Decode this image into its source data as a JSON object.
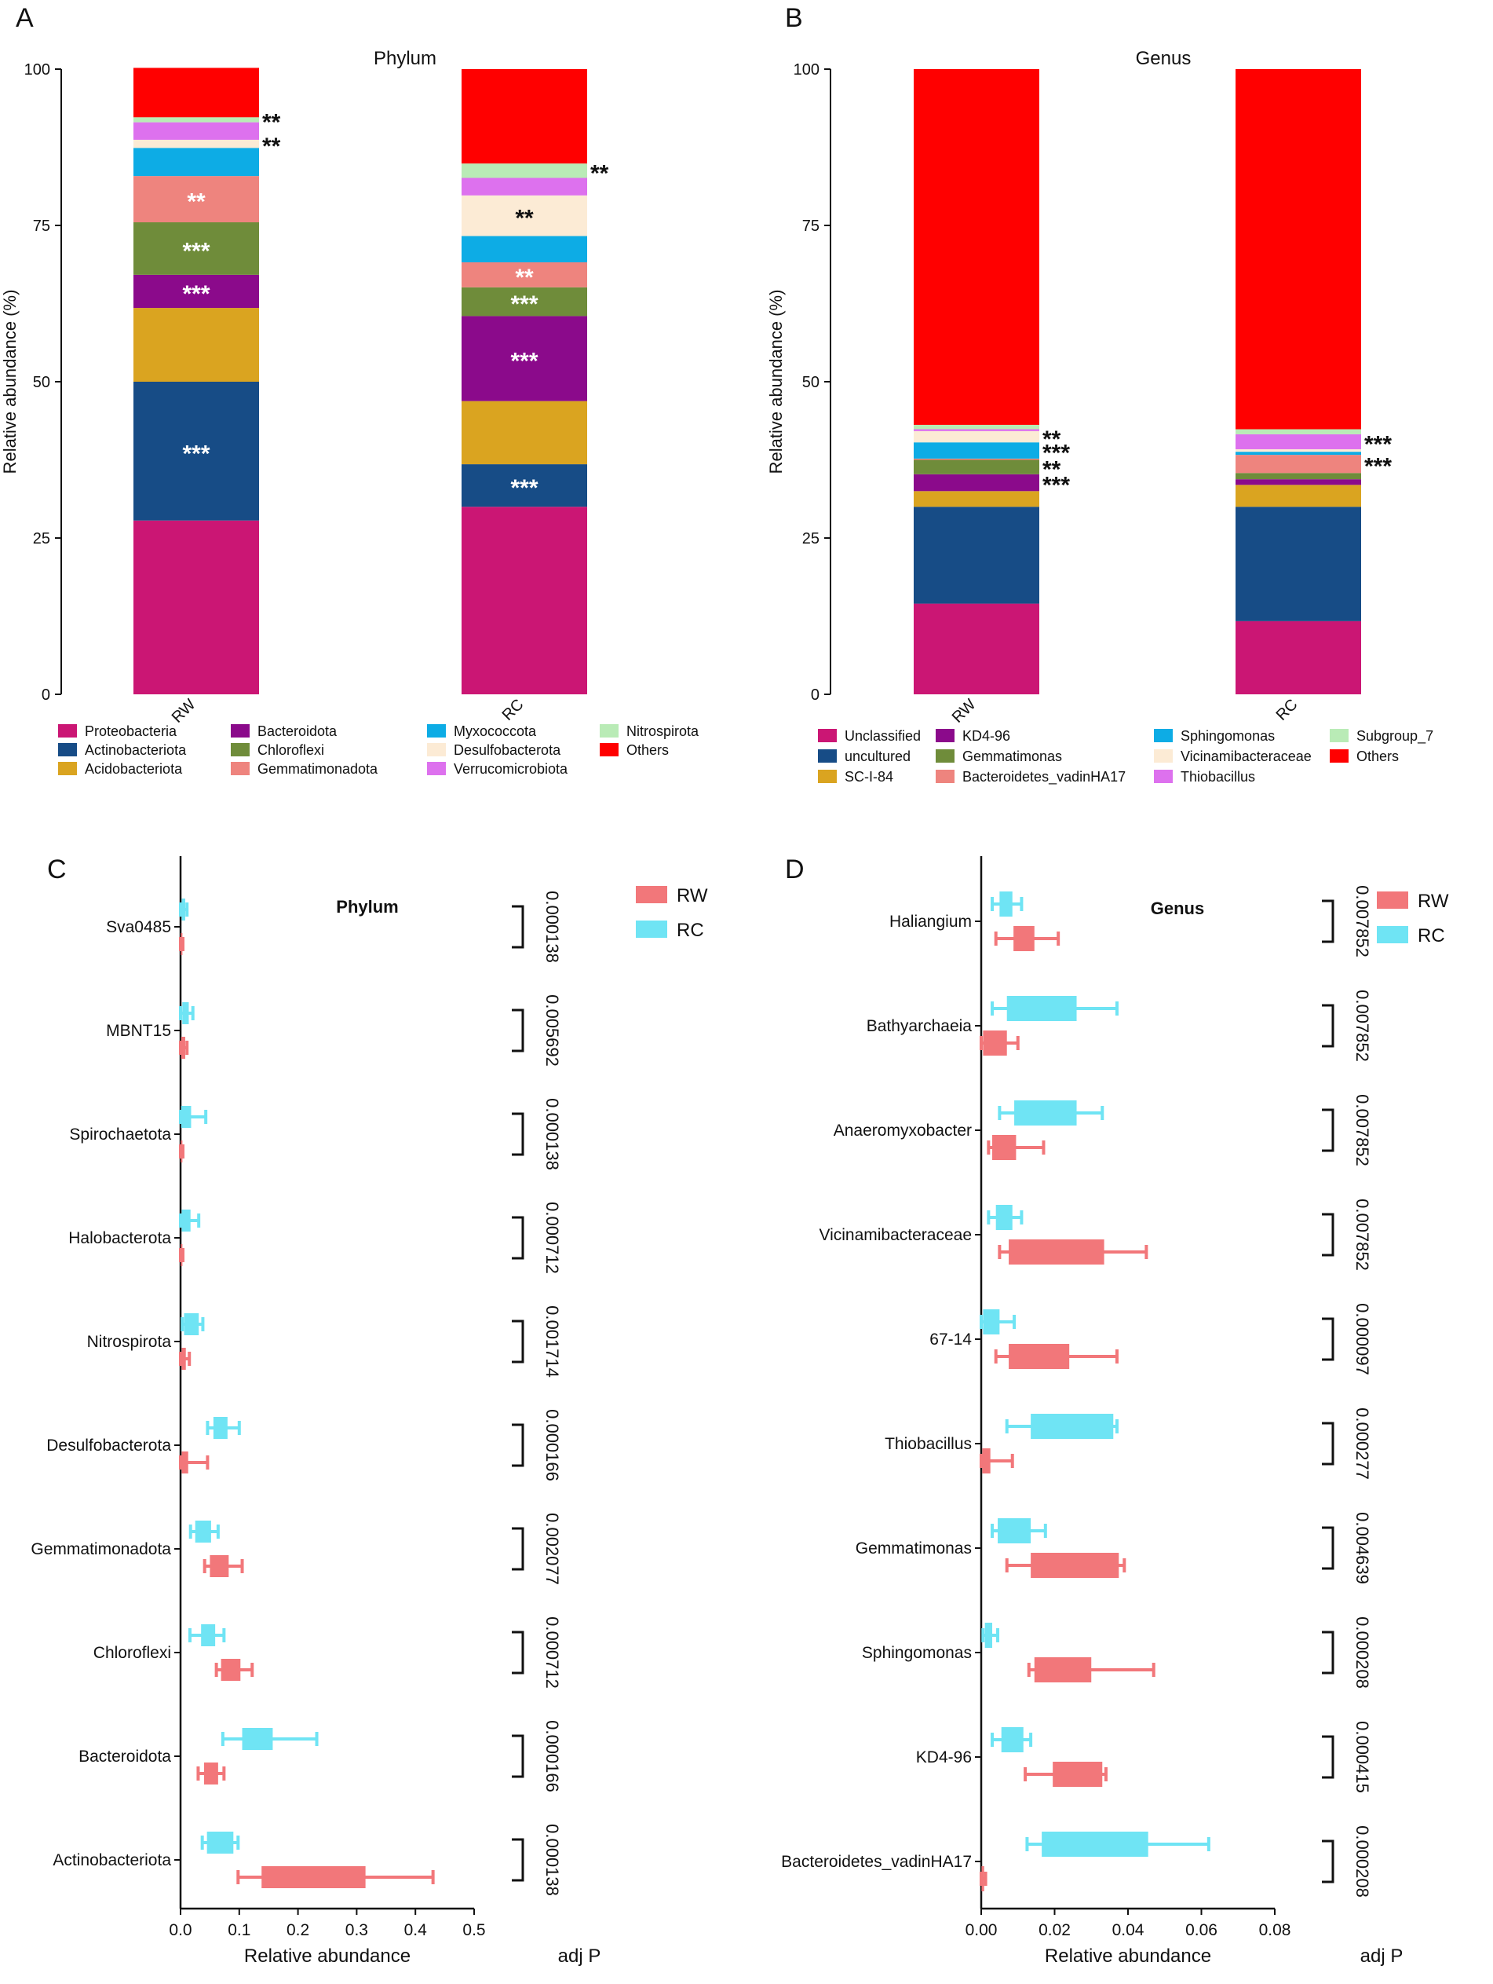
{
  "chart_data": [
    {
      "panel": "A",
      "type": "stacked-bar",
      "title": "Phylum",
      "ylabel": "Relative abundance (%)",
      "xlabel": "",
      "ylim": [
        0,
        100
      ],
      "yticks": [
        0,
        25,
        50,
        75,
        100
      ],
      "categories": [
        "RW",
        "RC"
      ],
      "series": [
        {
          "name": "Proteobacteria",
          "color": "#CB1674",
          "values": [
            27.8,
            30.0
          ],
          "sig": [
            "",
            ""
          ],
          "sig_color": [
            "#ffffff",
            "#ffffff"
          ]
        },
        {
          "name": "Actinobacteriota",
          "color": "#174C86",
          "values": [
            22.2,
            6.8
          ],
          "sig": [
            "***",
            "***"
          ],
          "sig_color": [
            "#ffffff",
            "#ffffff"
          ]
        },
        {
          "name": "Acidobacteriota",
          "color": "#DAA420",
          "values": [
            11.8,
            10.1
          ],
          "sig": [
            "",
            ""
          ],
          "sig_color": [
            "#ffffff",
            "#ffffff"
          ]
        },
        {
          "name": "Bacteroidota",
          "color": "#8B0A8B",
          "values": [
            5.3,
            13.6
          ],
          "sig": [
            "***",
            "***"
          ],
          "sig_color": [
            "#ffffff",
            "#ffffff"
          ]
        },
        {
          "name": "Chloroflexi",
          "color": "#6F8C3A",
          "values": [
            8.4,
            4.6
          ],
          "sig": [
            "***",
            "***"
          ],
          "sig_color": [
            "#ffffff",
            "#ffffff"
          ]
        },
        {
          "name": "Gemmatimonadota",
          "color": "#EE847E",
          "values": [
            7.4,
            4.0
          ],
          "sig": [
            "**",
            "**"
          ],
          "sig_color": [
            "#ffffff",
            "#ffffff"
          ]
        },
        {
          "name": "Myxococcota",
          "color": "#0DACE5",
          "values": [
            4.5,
            4.2
          ],
          "sig": [
            "",
            ""
          ],
          "sig_color": [
            "#ffffff",
            "#ffffff"
          ]
        },
        {
          "name": "Desulfobacterota",
          "color": "#FCEBD5",
          "values": [
            1.3,
            6.5
          ],
          "sig": [
            "**",
            "**"
          ],
          "sig_color": [
            "#111111",
            "#111111"
          ]
        },
        {
          "name": "Verrucomicrobiota",
          "color": "#DD71EE",
          "values": [
            2.8,
            2.8
          ],
          "sig": [
            "",
            ""
          ],
          "sig_color": [
            "#111111",
            "#111111"
          ]
        },
        {
          "name": "Nitrospirota",
          "color": "#B9EBB6",
          "values": [
            0.8,
            2.3
          ],
          "sig": [
            "**",
            "**"
          ],
          "sig_color": [
            "#111111",
            "#111111"
          ]
        },
        {
          "name": "Others",
          "color": "#FF0000",
          "values": [
            7.9,
            15.1
          ],
          "sig": [
            "",
            ""
          ],
          "sig_color": [
            "#111111",
            "#111111"
          ]
        }
      ]
    },
    {
      "panel": "B",
      "type": "stacked-bar",
      "title": "Genus",
      "ylabel": "Relative abundance (%)",
      "xlabel": "",
      "ylim": [
        0,
        100
      ],
      "yticks": [
        0,
        25,
        50,
        75,
        100
      ],
      "categories": [
        "RW",
        "RC"
      ],
      "series": [
        {
          "name": "Unclassified",
          "color": "#CB1674",
          "values": [
            14.5,
            11.7
          ],
          "sig": [
            "",
            ""
          ],
          "sig_color": [
            "#ffffff",
            "#ffffff"
          ]
        },
        {
          "name": "uncultured",
          "color": "#174C86",
          "values": [
            15.5,
            18.3
          ],
          "sig": [
            "",
            ""
          ],
          "sig_color": [
            "#ffffff",
            "#ffffff"
          ]
        },
        {
          "name": "SC-I-84",
          "color": "#DAA420",
          "values": [
            2.5,
            3.5
          ],
          "sig": [
            "",
            ""
          ],
          "sig_color": [
            "#ffffff",
            "#ffffff"
          ]
        },
        {
          "name": "KD4-96",
          "color": "#8B0A8B",
          "values": [
            2.7,
            0.9
          ],
          "sig": [
            "***",
            ""
          ],
          "sig_color": [
            "#ffffff",
            "#ffffff"
          ]
        },
        {
          "name": "Gemmatimonas",
          "color": "#6F8C3A",
          "values": [
            2.3,
            1.0
          ],
          "sig": [
            "**",
            ""
          ],
          "sig_color": [
            "#111111",
            "#111111"
          ]
        },
        {
          "name": "Bacteroidetes_vadinHA17",
          "color": "#EE847E",
          "values": [
            0.2,
            2.9
          ],
          "sig": [
            "",
            "***"
          ],
          "sig_color": [
            "#111111",
            "#111111"
          ]
        },
        {
          "name": "Sphingomonas",
          "color": "#0DACE5",
          "values": [
            2.6,
            0.5
          ],
          "sig": [
            "***",
            ""
          ],
          "sig_color": [
            "#111111",
            "#111111"
          ]
        },
        {
          "name": "Vicinamibacteraceae",
          "color": "#FCEBD5",
          "values": [
            1.8,
            0.4
          ],
          "sig": [
            "**",
            ""
          ],
          "sig_color": [
            "#111111",
            "#111111"
          ]
        },
        {
          "name": "Thiobacillus",
          "color": "#DD71EE",
          "values": [
            0.3,
            2.4
          ],
          "sig": [
            "",
            "***"
          ],
          "sig_color": [
            "#111111",
            "#111111"
          ]
        },
        {
          "name": "Subgroup_7",
          "color": "#B9EBB6",
          "values": [
            0.7,
            0.8
          ],
          "sig": [
            "",
            ""
          ],
          "sig_color": [
            "#111111",
            "#111111"
          ]
        },
        {
          "name": "Others",
          "color": "#FF0000",
          "values": [
            56.9,
            57.6
          ],
          "sig": [
            "",
            ""
          ],
          "sig_color": [
            "#111111",
            "#111111"
          ]
        }
      ]
    },
    {
      "panel": "C",
      "type": "box",
      "title": "Phylum",
      "xlabel": "Relative abundance",
      "pvalue_label": "adj P",
      "xlim": [
        0,
        0.5
      ],
      "xticks": [
        0,
        0.1,
        0.2,
        0.3,
        0.4,
        0.5
      ],
      "xtick_labels": [
        "0.0",
        "0.1",
        "0.2",
        "0.3",
        "0.4",
        "0.5"
      ],
      "legend": [
        {
          "name": "RW",
          "color": "#F2777A"
        },
        {
          "name": "RC",
          "color": "#6FE4F4"
        }
      ],
      "items": [
        {
          "taxon": "Sva0485",
          "p": "0.000138",
          "RC": {
            "wlo": 0.0,
            "q1": 0.002,
            "q3": 0.008,
            "whi": 0.011
          },
          "RW": {
            "wlo": 0.0,
            "q1": 0.0005,
            "q3": 0.003,
            "whi": 0.004
          }
        },
        {
          "taxon": "MBNT15",
          "p": "0.005692",
          "RC": {
            "wlo": 0.0,
            "q1": 0.003,
            "q3": 0.014,
            "whi": 0.021
          },
          "RW": {
            "wlo": 0.0,
            "q1": 0.001,
            "q3": 0.008,
            "whi": 0.011
          }
        },
        {
          "taxon": "Spirochaetota",
          "p": "0.000138",
          "RC": {
            "wlo": 0.0,
            "q1": 0.001,
            "q3": 0.018,
            "whi": 0.043
          },
          "RW": {
            "wlo": 0.0,
            "q1": 0.0005,
            "q3": 0.003,
            "whi": 0.004
          }
        },
        {
          "taxon": "Halobacterota",
          "p": "0.000712",
          "RC": {
            "wlo": 0.0,
            "q1": 0.002,
            "q3": 0.017,
            "whi": 0.031
          },
          "RW": {
            "wlo": 0.0,
            "q1": 0.0005,
            "q3": 0.003,
            "whi": 0.004
          }
        },
        {
          "taxon": "Nitrospirota",
          "p": "0.001714",
          "RC": {
            "wlo": 0.003,
            "q1": 0.006,
            "q3": 0.031,
            "whi": 0.038
          },
          "RW": {
            "wlo": 0.0,
            "q1": 0.002,
            "q3": 0.009,
            "whi": 0.015
          }
        },
        {
          "taxon": "Desulfobacterota",
          "p": "0.000166",
          "RC": {
            "wlo": 0.046,
            "q1": 0.056,
            "q3": 0.08,
            "whi": 0.1
          },
          "RW": {
            "wlo": 0.0,
            "q1": 0.002,
            "q3": 0.013,
            "whi": 0.046
          }
        },
        {
          "taxon": "Gemmatimonadota",
          "p": "0.002077",
          "RC": {
            "wlo": 0.017,
            "q1": 0.025,
            "q3": 0.052,
            "whi": 0.064
          },
          "RW": {
            "wlo": 0.041,
            "q1": 0.05,
            "q3": 0.082,
            "whi": 0.105
          }
        },
        {
          "taxon": "Chloroflexi",
          "p": "0.000712",
          "RC": {
            "wlo": 0.016,
            "q1": 0.035,
            "q3": 0.059,
            "whi": 0.074
          },
          "RW": {
            "wlo": 0.061,
            "q1": 0.069,
            "q3": 0.102,
            "whi": 0.122
          }
        },
        {
          "taxon": "Bacteroidota",
          "p": "0.000166",
          "RC": {
            "wlo": 0.072,
            "q1": 0.105,
            "q3": 0.157,
            "whi": 0.232
          },
          "RW": {
            "wlo": 0.03,
            "q1": 0.04,
            "q3": 0.064,
            "whi": 0.074
          }
        },
        {
          "taxon": "Actinobacteriota",
          "p": "0.000138",
          "RC": {
            "wlo": 0.037,
            "q1": 0.045,
            "q3": 0.09,
            "whi": 0.098
          },
          "RW": {
            "wlo": 0.098,
            "q1": 0.138,
            "q3": 0.315,
            "whi": 0.43
          }
        }
      ]
    },
    {
      "panel": "D",
      "type": "box",
      "title": "Genus",
      "xlabel": "Relative abundance",
      "pvalue_label": "adj P",
      "xlim": [
        0,
        0.08
      ],
      "xticks": [
        0,
        0.02,
        0.04,
        0.06,
        0.08
      ],
      "xtick_labels": [
        "0.00",
        "0.02",
        "0.04",
        "0.06",
        "0.08"
      ],
      "legend": [
        {
          "name": "RW",
          "color": "#F2777A"
        },
        {
          "name": "RC",
          "color": "#6FE4F4"
        }
      ],
      "items": [
        {
          "taxon": "Haliangium",
          "p": "0.007852",
          "RC": {
            "wlo": 0.003,
            "q1": 0.005,
            "q3": 0.0085,
            "whi": 0.011
          },
          "RW": {
            "wlo": 0.004,
            "q1": 0.0088,
            "q3": 0.0145,
            "whi": 0.021
          }
        },
        {
          "taxon": "Bathyarchaeia",
          "p": "0.007852",
          "RC": {
            "wlo": 0.003,
            "q1": 0.007,
            "q3": 0.026,
            "whi": 0.037
          },
          "RW": {
            "wlo": 0.0,
            "q1": 0.0005,
            "q3": 0.007,
            "whi": 0.01
          }
        },
        {
          "taxon": "Anaeromyxobacter",
          "p": "0.007852",
          "RC": {
            "wlo": 0.005,
            "q1": 0.009,
            "q3": 0.026,
            "whi": 0.033
          },
          "RW": {
            "wlo": 0.002,
            "q1": 0.003,
            "q3": 0.0095,
            "whi": 0.017
          }
        },
        {
          "taxon": "Vicinamibacteraceae",
          "p": "0.007852",
          "RC": {
            "wlo": 0.002,
            "q1": 0.004,
            "q3": 0.0085,
            "whi": 0.011
          },
          "RW": {
            "wlo": 0.005,
            "q1": 0.0075,
            "q3": 0.0335,
            "whi": 0.045
          }
        },
        {
          "taxon": "67-14",
          "p": "0.000097",
          "RC": {
            "wlo": 0.0,
            "q1": 0.0005,
            "q3": 0.005,
            "whi": 0.009
          },
          "RW": {
            "wlo": 0.004,
            "q1": 0.0075,
            "q3": 0.024,
            "whi": 0.037
          }
        },
        {
          "taxon": "Thiobacillus",
          "p": "0.000277",
          "RC": {
            "wlo": 0.007,
            "q1": 0.0135,
            "q3": 0.036,
            "whi": 0.037
          },
          "RW": {
            "wlo": 0.0,
            "q1": 0.0003,
            "q3": 0.0025,
            "whi": 0.0085
          }
        },
        {
          "taxon": "Gemmatimonas",
          "p": "0.004639",
          "RC": {
            "wlo": 0.003,
            "q1": 0.0045,
            "q3": 0.0135,
            "whi": 0.0175
          },
          "RW": {
            "wlo": 0.007,
            "q1": 0.0135,
            "q3": 0.0375,
            "whi": 0.039
          }
        },
        {
          "taxon": "Sphingomonas",
          "p": "0.000208",
          "RC": {
            "wlo": 0.0005,
            "q1": 0.001,
            "q3": 0.003,
            "whi": 0.0045
          },
          "RW": {
            "wlo": 0.013,
            "q1": 0.0145,
            "q3": 0.03,
            "whi": 0.047
          }
        },
        {
          "taxon": "KD4-96",
          "p": "0.000415",
          "RC": {
            "wlo": 0.003,
            "q1": 0.0055,
            "q3": 0.0115,
            "whi": 0.0135
          },
          "RW": {
            "wlo": 0.012,
            "q1": 0.0195,
            "q3": 0.033,
            "whi": 0.034
          }
        },
        {
          "taxon": "Bacteroidetes_vadinHA17",
          "p": "0.000208",
          "RC": {
            "wlo": 0.0125,
            "q1": 0.0165,
            "q3": 0.0455,
            "whi": 0.062
          },
          "RW": {
            "wlo": 0.0,
            "q1": 0.0001,
            "q3": 0.0008,
            "whi": 0.0012
          }
        }
      ]
    }
  ]
}
